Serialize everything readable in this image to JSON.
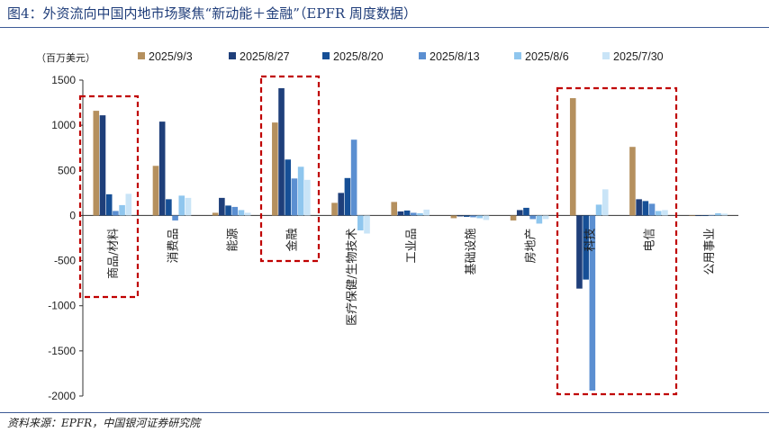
{
  "header": {
    "title": "图4：外资流向中国内地市场聚焦“新动能＋金融”（EPFR 周度数据）"
  },
  "footer": {
    "source": "资料来源：EPFR，中国银河证券研究院"
  },
  "chart_data": {
    "type": "bar",
    "unit": "（百万美元）",
    "categories": [
      "商品/材料",
      "消费品",
      "能源",
      "金融",
      "医疗保健/生物技术",
      "工业品",
      "基础设施",
      "房地产",
      "科技",
      "电信",
      "公用事业"
    ],
    "ylim": [
      -2000,
      1500
    ],
    "yticks": [
      -2000,
      -1500,
      -1000,
      -500,
      0,
      500,
      1000,
      1500
    ],
    "legend_position": "top",
    "grid": false,
    "series": [
      {
        "name": "2025/9/3",
        "color": "#b5905e",
        "values": [
          1160,
          550,
          30,
          1030,
          140,
          150,
          -30,
          -55,
          1300,
          760,
          0
        ]
      },
      {
        "name": "2025/8/27",
        "color": "#1f3f7a",
        "values": [
          1110,
          1040,
          195,
          1410,
          250,
          45,
          -10,
          60,
          -810,
          180,
          0
        ]
      },
      {
        "name": "2025/8/20",
        "color": "#164f96",
        "values": [
          235,
          180,
          110,
          620,
          415,
          55,
          -15,
          85,
          -710,
          160,
          0
        ]
      },
      {
        "name": "2025/8/13",
        "color": "#5b8fd1",
        "values": [
          50,
          -55,
          95,
          410,
          840,
          30,
          -20,
          -40,
          -1940,
          130,
          5
        ]
      },
      {
        "name": "2025/8/6",
        "color": "#8fc6ee",
        "values": [
          115,
          220,
          60,
          540,
          -165,
          25,
          -30,
          -90,
          120,
          50,
          25
        ]
      },
      {
        "name": "2025/7/30",
        "color": "#c9e4f7",
        "values": [
          240,
          195,
          30,
          395,
          -200,
          65,
          -50,
          -40,
          290,
          60,
          20
        ]
      }
    ],
    "highlight_boxes": [
      "商品/材料",
      "金融",
      "科技"
    ]
  }
}
